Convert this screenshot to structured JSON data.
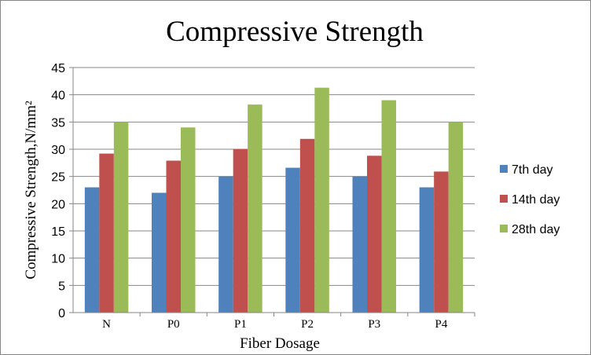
{
  "chart_data": {
    "type": "bar",
    "title": "Compressive Strength",
    "xlabel": "Fiber Dosage",
    "ylabel": "Compressive Strength,N/mm²",
    "categories": [
      "N",
      "P0",
      "P1",
      "P2",
      "P3",
      "P4"
    ],
    "series": [
      {
        "name": "7th day",
        "color": "#4F81BD",
        "values": [
          23.0,
          22.0,
          25.0,
          26.6,
          25.0,
          23.0
        ]
      },
      {
        "name": "14th day",
        "color": "#C0504D",
        "values": [
          29.2,
          27.9,
          30.0,
          31.9,
          28.8,
          25.9
        ]
      },
      {
        "name": "28th day",
        "color": "#9BBB59",
        "values": [
          35.0,
          34.0,
          38.2,
          41.3,
          39.0,
          35.0
        ]
      }
    ],
    "ylim": [
      0,
      45
    ],
    "yticks": [
      0,
      5,
      10,
      15,
      20,
      25,
      30,
      35,
      40,
      45
    ],
    "grid": true,
    "legend_position": "right"
  }
}
